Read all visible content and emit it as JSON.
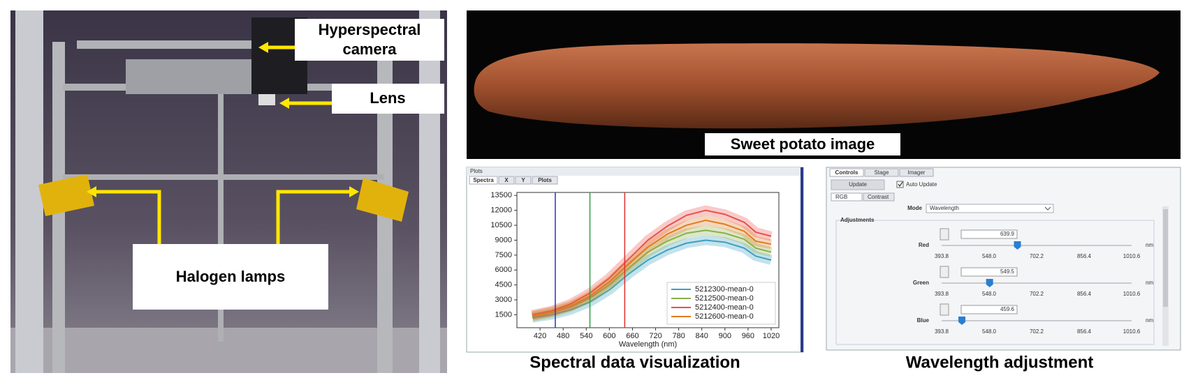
{
  "setup_photo": {
    "camera_label": [
      "Hyperspectral",
      "camera"
    ],
    "lens_label": "Lens",
    "lamps_label": "Halogen lamps"
  },
  "potato_photo": {
    "label": "Sweet potato image"
  },
  "captions": {
    "spectral": "Spectral data visualization",
    "wavelength": "Wavelength adjustment"
  },
  "chart_data": {
    "type": "line",
    "window_title": "Plots",
    "tabs": [
      "Spectra",
      "X",
      "Y",
      "Plots"
    ],
    "xlabel": "Wavelength (nm)",
    "x": [
      400,
      450,
      500,
      550,
      600,
      650,
      700,
      750,
      800,
      850,
      900,
      950,
      980,
      1020
    ],
    "series": [
      {
        "name": "5212300-mean-0",
        "color": "#3d9fbf",
        "values": [
          1200,
          1500,
          2000,
          2800,
          4000,
          5600,
          7000,
          8000,
          8700,
          9000,
          8800,
          8200,
          7400,
          7000
        ]
      },
      {
        "name": "5212500-mean-0",
        "color": "#8ab04a",
        "values": [
          1300,
          1700,
          2300,
          3200,
          4500,
          6200,
          7800,
          8900,
          9700,
          10000,
          9700,
          9100,
          8200,
          7800
        ]
      },
      {
        "name": "5212400-mean-0",
        "color": "#e8504a",
        "values": [
          1500,
          1900,
          2600,
          3700,
          5200,
          7100,
          9000,
          10400,
          11500,
          12000,
          11600,
          10800,
          9800,
          9400
        ]
      },
      {
        "name": "5212600-mean-0",
        "color": "#e07b20",
        "values": [
          1400,
          1800,
          2400,
          3400,
          4800,
          6600,
          8300,
          9600,
          10500,
          11000,
          10600,
          9900,
          8900,
          8600
        ]
      }
    ],
    "markers": [
      {
        "value": 459.6,
        "color": "#3030c0"
      },
      {
        "value": 549.5,
        "color": "#30a040"
      },
      {
        "value": 639.9,
        "color": "#e03030"
      }
    ],
    "xlim": [
      360,
      1040
    ],
    "ylim": [
      200,
      13800
    ],
    "xticks": [
      420,
      480,
      540,
      600,
      660,
      720,
      780,
      840,
      900,
      960,
      1020
    ],
    "yticks": [
      1500,
      3000,
      4500,
      6000,
      7500,
      9000,
      10500,
      12000,
      13500
    ],
    "legend": "lower right"
  },
  "wavelength_panel": {
    "tabs": [
      "Controls",
      "Stage",
      "Imager"
    ],
    "update_button": "Update",
    "auto_update": "Auto Update",
    "subtabs": [
      "RGB",
      "Contrast"
    ],
    "mode_label": "Mode",
    "mode_value": "Wavelength",
    "group_label": "Adjustments",
    "unit": "nm",
    "scale": [
      {
        "value": 393.8,
        "label": "393.8"
      },
      {
        "value": 548,
        "label": "548.0"
      },
      {
        "value": 702.2,
        "label": "702.2"
      },
      {
        "value": 856.4,
        "label": "856.4"
      },
      {
        "value": 1010.6,
        "label": "1010.6"
      }
    ],
    "channels": [
      {
        "name": "Red",
        "value": 639.9
      },
      {
        "name": "Green",
        "value": 549.5
      },
      {
        "name": "Blue",
        "value": 459.6
      }
    ]
  }
}
